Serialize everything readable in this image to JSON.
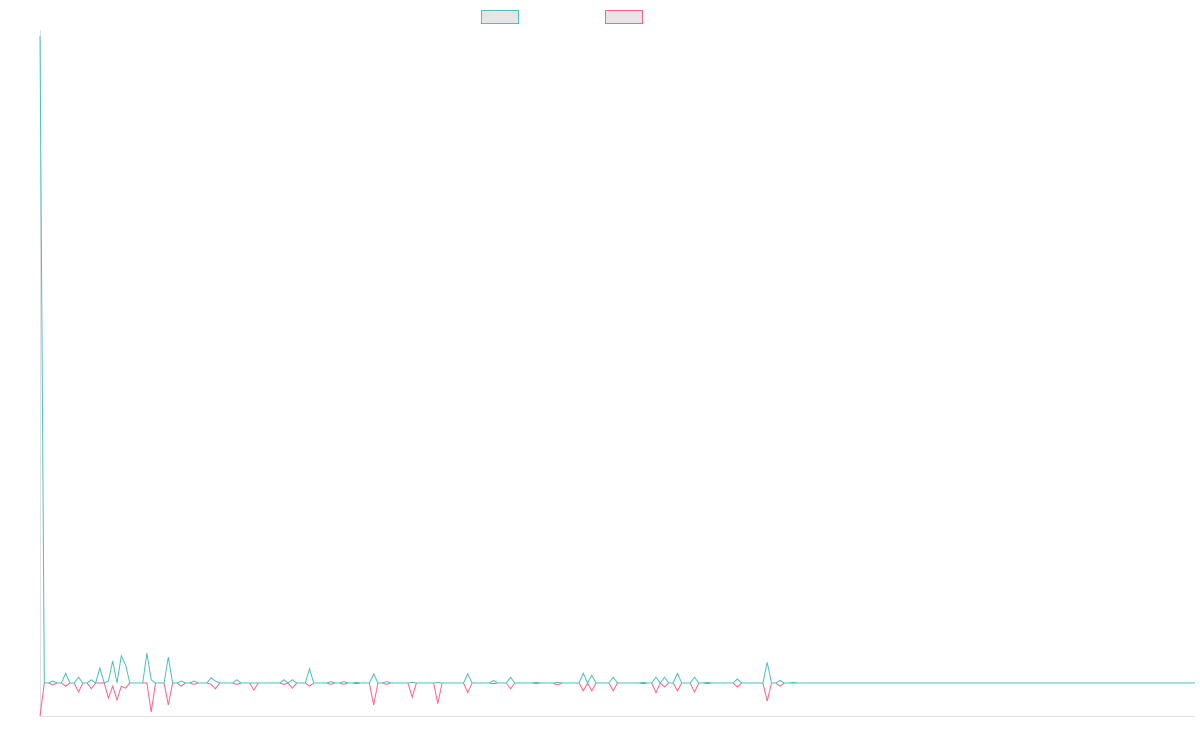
{
  "chart_data": {
    "type": "line",
    "title": "",
    "xlabel": "",
    "ylabel": "",
    "xlim": [
      0,
      270
    ],
    "ylim": [
      -5.1,
      100
    ],
    "grid": false,
    "legend": {
      "placement": "top-center",
      "labels": [
        "",
        ""
      ]
    },
    "x_count": 271,
    "series": [
      {
        "key": "series-a",
        "color": "#4bc0c0",
        "points": [
          [
            0,
            100
          ],
          [
            3,
            0.3
          ],
          [
            6,
            1.5
          ],
          [
            9,
            0.9
          ],
          [
            12,
            0.5
          ],
          [
            14,
            2.3
          ],
          [
            16,
            0.3
          ],
          [
            17,
            3.4
          ],
          [
            19,
            4.2
          ],
          [
            20,
            2.8
          ],
          [
            25,
            4.6
          ],
          [
            26,
            0.5
          ],
          [
            30,
            4.0
          ],
          [
            33,
            0.3
          ],
          [
            36,
            0.3
          ],
          [
            40,
            0.8
          ],
          [
            41,
            0.3
          ],
          [
            46,
            0.5
          ],
          [
            57,
            0.5
          ],
          [
            59,
            0.5
          ],
          [
            63,
            2.2
          ],
          [
            68,
            0.2
          ],
          [
            71,
            0.2
          ],
          [
            74,
            0.1
          ],
          [
            78,
            1.4
          ],
          [
            81,
            0.2
          ],
          [
            87,
            0.1
          ],
          [
            93,
            0.1
          ],
          [
            100,
            1.4
          ],
          [
            106,
            0.4
          ],
          [
            110,
            0.9
          ],
          [
            116,
            0.1
          ],
          [
            121,
            0.1
          ],
          [
            127,
            1.5
          ],
          [
            129,
            1.2
          ],
          [
            134,
            0.9
          ],
          [
            141,
            0.1
          ],
          [
            144,
            0.9
          ],
          [
            146,
            0.9
          ],
          [
            149,
            1.5
          ],
          [
            153,
            0.9
          ],
          [
            156,
            0.1
          ],
          [
            163,
            0.6
          ],
          [
            170,
            3.2
          ],
          [
            173,
            0.4
          ],
          [
            176,
            0.1
          ]
        ]
      },
      {
        "key": "series-b",
        "color": "#ff6384",
        "points": [
          [
            0,
            -5.1
          ],
          [
            3,
            -0.3
          ],
          [
            6,
            -0.5
          ],
          [
            9,
            -1.4
          ],
          [
            12,
            -0.9
          ],
          [
            16,
            -2.3
          ],
          [
            17,
            -0.5
          ],
          [
            18,
            -2.6
          ],
          [
            19,
            -0.5
          ],
          [
            20,
            -0.8
          ],
          [
            26,
            -4.5
          ],
          [
            30,
            -3.4
          ],
          [
            33,
            -0.5
          ],
          [
            36,
            -0.2
          ],
          [
            40,
            -0.2
          ],
          [
            41,
            -0.9
          ],
          [
            46,
            -0.2
          ],
          [
            50,
            -1.1
          ],
          [
            57,
            -0.2
          ],
          [
            59,
            -0.8
          ],
          [
            63,
            -0.5
          ],
          [
            68,
            -0.2
          ],
          [
            71,
            -0.2
          ],
          [
            74,
            -0.1
          ],
          [
            78,
            -3.4
          ],
          [
            81,
            -0.2
          ],
          [
            87,
            -2.2
          ],
          [
            93,
            -3.2
          ],
          [
            100,
            -1.5
          ],
          [
            106,
            -0.1
          ],
          [
            110,
            -0.9
          ],
          [
            116,
            -0.1
          ],
          [
            121,
            -0.3
          ],
          [
            127,
            -1.2
          ],
          [
            129,
            -1.2
          ],
          [
            134,
            -1.2
          ],
          [
            141,
            -0.1
          ],
          [
            144,
            -1.5
          ],
          [
            146,
            -0.6
          ],
          [
            149,
            -1.2
          ],
          [
            153,
            -1.4
          ],
          [
            156,
            -0.1
          ],
          [
            163,
            -0.6
          ],
          [
            170,
            -2.8
          ],
          [
            173,
            -0.5
          ]
        ]
      }
    ]
  }
}
